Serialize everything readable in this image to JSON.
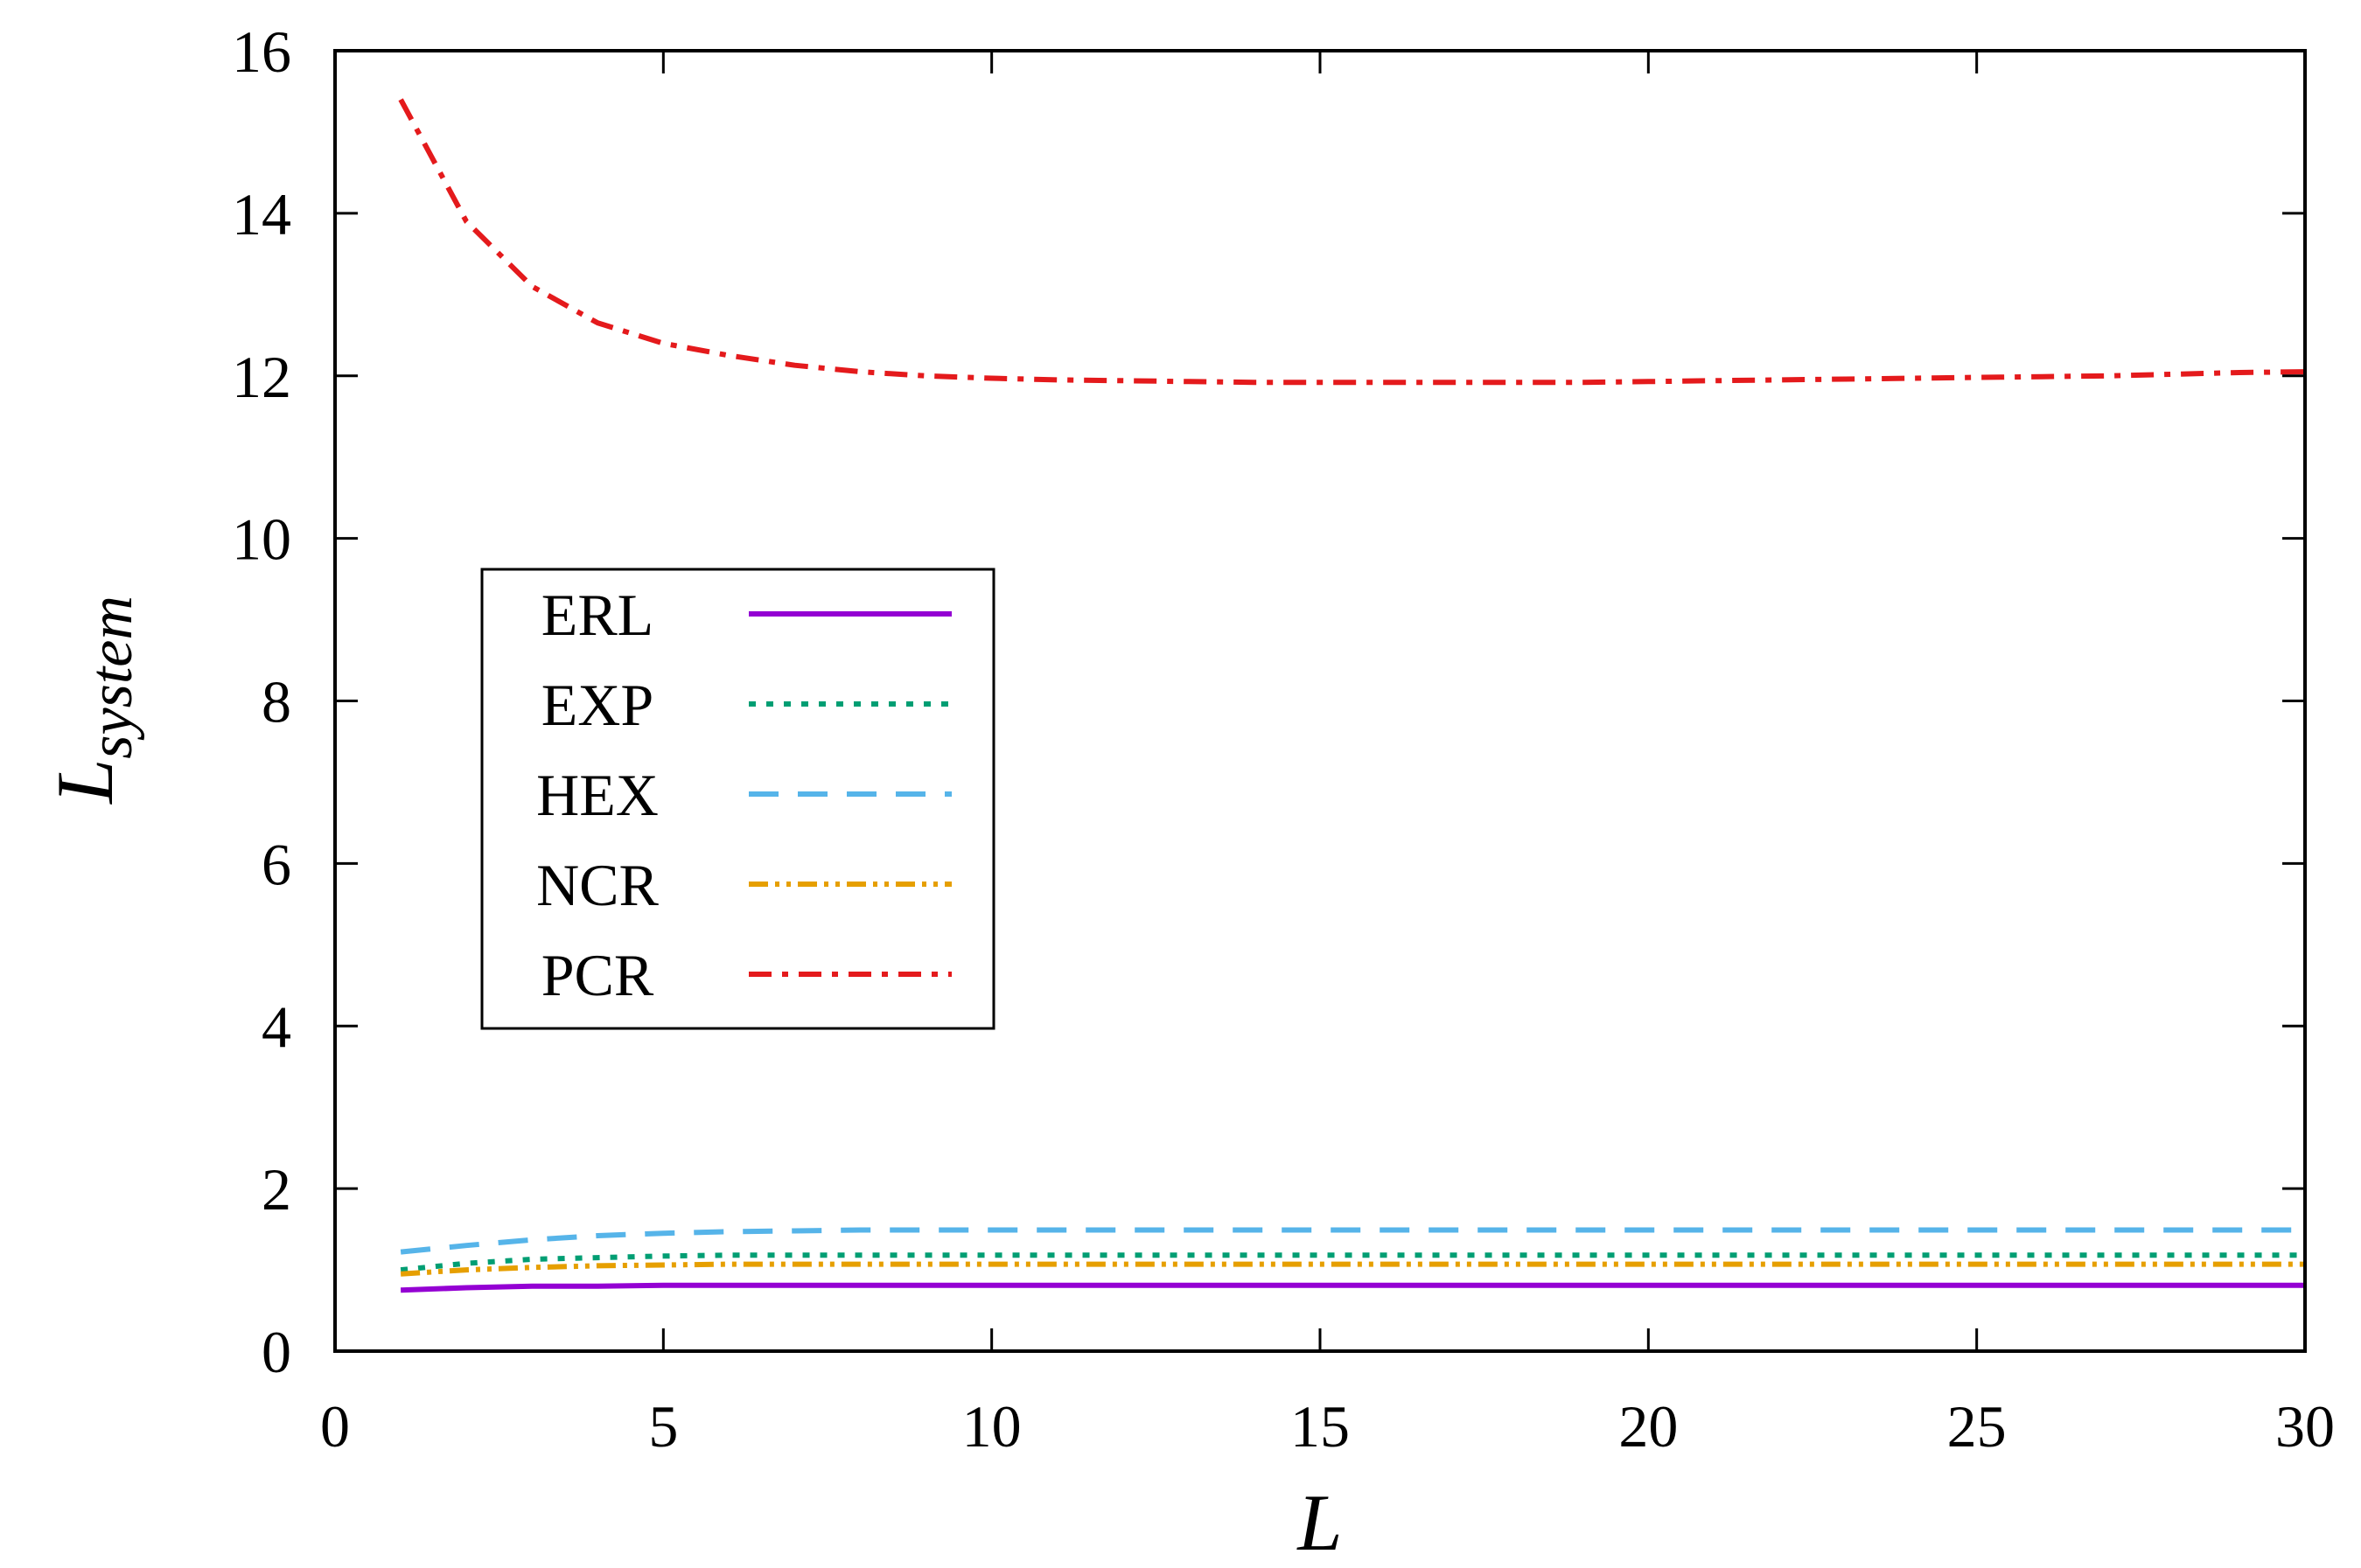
{
  "chart_data": {
    "type": "line",
    "title": "",
    "xlabel": "L",
    "ylabel_main": "L",
    "ylabel_sub": "system",
    "xlim": [
      0,
      30
    ],
    "ylim": [
      0,
      16
    ],
    "xticks": [
      0,
      5,
      10,
      15,
      20,
      25,
      30
    ],
    "yticks": [
      0,
      2,
      4,
      6,
      8,
      10,
      12,
      14,
      16
    ],
    "grid": false,
    "legend_position": "center-left",
    "x": [
      1,
      2,
      3,
      4,
      5,
      6,
      7,
      8,
      9,
      10,
      11,
      12,
      13,
      14,
      15,
      16,
      17,
      18,
      19,
      20,
      21,
      22,
      23,
      24,
      25,
      26,
      27,
      28,
      29,
      30
    ],
    "series": [
      {
        "name": "ERL",
        "color": "#9400d3",
        "style": "solid",
        "values": [
          0.75,
          0.78,
          0.8,
          0.8,
          0.81,
          0.81,
          0.81,
          0.81,
          0.81,
          0.81,
          0.81,
          0.81,
          0.81,
          0.81,
          0.81,
          0.81,
          0.81,
          0.81,
          0.81,
          0.81,
          0.81,
          0.81,
          0.81,
          0.81,
          0.81,
          0.81,
          0.81,
          0.81,
          0.81,
          0.81
        ]
      },
      {
        "name": "EXP",
        "color": "#009e73",
        "style": "dotted",
        "values": [
          1.0,
          1.08,
          1.13,
          1.15,
          1.17,
          1.18,
          1.18,
          1.18,
          1.18,
          1.18,
          1.18,
          1.18,
          1.18,
          1.18,
          1.18,
          1.18,
          1.18,
          1.18,
          1.18,
          1.18,
          1.18,
          1.18,
          1.18,
          1.18,
          1.18,
          1.18,
          1.18,
          1.18,
          1.18,
          1.18
        ]
      },
      {
        "name": "HEX",
        "color": "#56b4e9",
        "style": "dashed",
        "values": [
          1.22,
          1.3,
          1.37,
          1.42,
          1.45,
          1.47,
          1.48,
          1.49,
          1.49,
          1.49,
          1.49,
          1.49,
          1.49,
          1.49,
          1.49,
          1.49,
          1.49,
          1.49,
          1.49,
          1.49,
          1.49,
          1.49,
          1.49,
          1.49,
          1.49,
          1.49,
          1.49,
          1.49,
          1.49,
          1.49
        ]
      },
      {
        "name": "NCR",
        "color": "#e69f00",
        "style": "dash-dot-dot",
        "values": [
          0.95,
          1.0,
          1.03,
          1.05,
          1.06,
          1.07,
          1.07,
          1.07,
          1.07,
          1.07,
          1.07,
          1.07,
          1.07,
          1.07,
          1.07,
          1.07,
          1.07,
          1.07,
          1.07,
          1.07,
          1.07,
          1.07,
          1.07,
          1.07,
          1.07,
          1.07,
          1.07,
          1.07,
          1.07,
          1.07
        ]
      },
      {
        "name": "PCR",
        "color": "#e41a1c",
        "style": "dash-dot",
        "values": [
          15.4,
          13.9,
          13.1,
          12.65,
          12.4,
          12.25,
          12.13,
          12.05,
          12.0,
          11.97,
          11.95,
          11.94,
          11.93,
          11.92,
          11.92,
          11.92,
          11.92,
          11.92,
          11.92,
          11.93,
          11.94,
          11.95,
          11.96,
          11.97,
          11.98,
          11.99,
          12.0,
          12.02,
          12.04,
          12.05
        ]
      }
    ]
  }
}
